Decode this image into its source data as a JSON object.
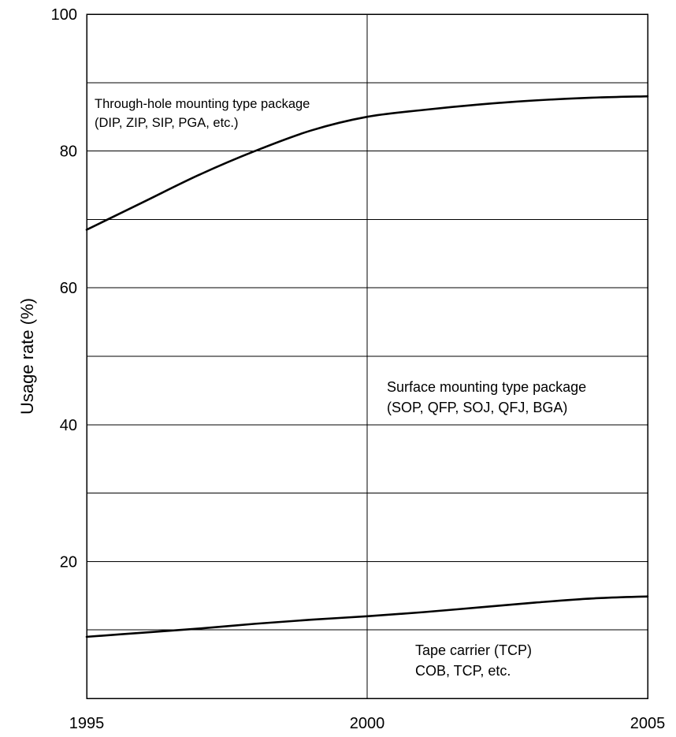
{
  "chart_data": {
    "type": "line",
    "ylabel": "Usage rate (%)",
    "xlabel": "",
    "xlim": [
      1995,
      2005
    ],
    "ylim": [
      0,
      100
    ],
    "x_ticks": [
      "1995",
      "2000",
      "2005"
    ],
    "y_ticks": [
      "20",
      "40",
      "60",
      "80",
      "100"
    ],
    "grid": true,
    "series": [
      {
        "x": [
          1995,
          1996,
          1997,
          1998,
          1999,
          2000,
          2001,
          2002,
          2003,
          2004,
          2005
        ],
        "values": [
          68.5,
          72.5,
          76.5,
          80.0,
          83.0,
          85.0,
          86.0,
          86.8,
          87.4,
          87.8,
          88.0
        ]
      },
      {
        "x": [
          1995,
          1996,
          1997,
          1998,
          1999,
          2000,
          2001,
          2002,
          2003,
          2004,
          2005
        ],
        "values": [
          9.0,
          9.6,
          10.2,
          10.9,
          11.5,
          12.0,
          12.6,
          13.3,
          14.0,
          14.6,
          14.9
        ]
      }
    ],
    "annotations": [
      {
        "lines": [
          "Through-hole mounting type package",
          "(DIP, ZIP, SIP, PGA, etc.)"
        ]
      },
      {
        "lines": [
          "Surface mounting type package",
          "(SOP, QFP, SOJ, QFJ, BGA)"
        ]
      },
      {
        "lines": [
          "Tape carrier (TCP)",
          "COB, TCP, etc."
        ]
      }
    ]
  }
}
